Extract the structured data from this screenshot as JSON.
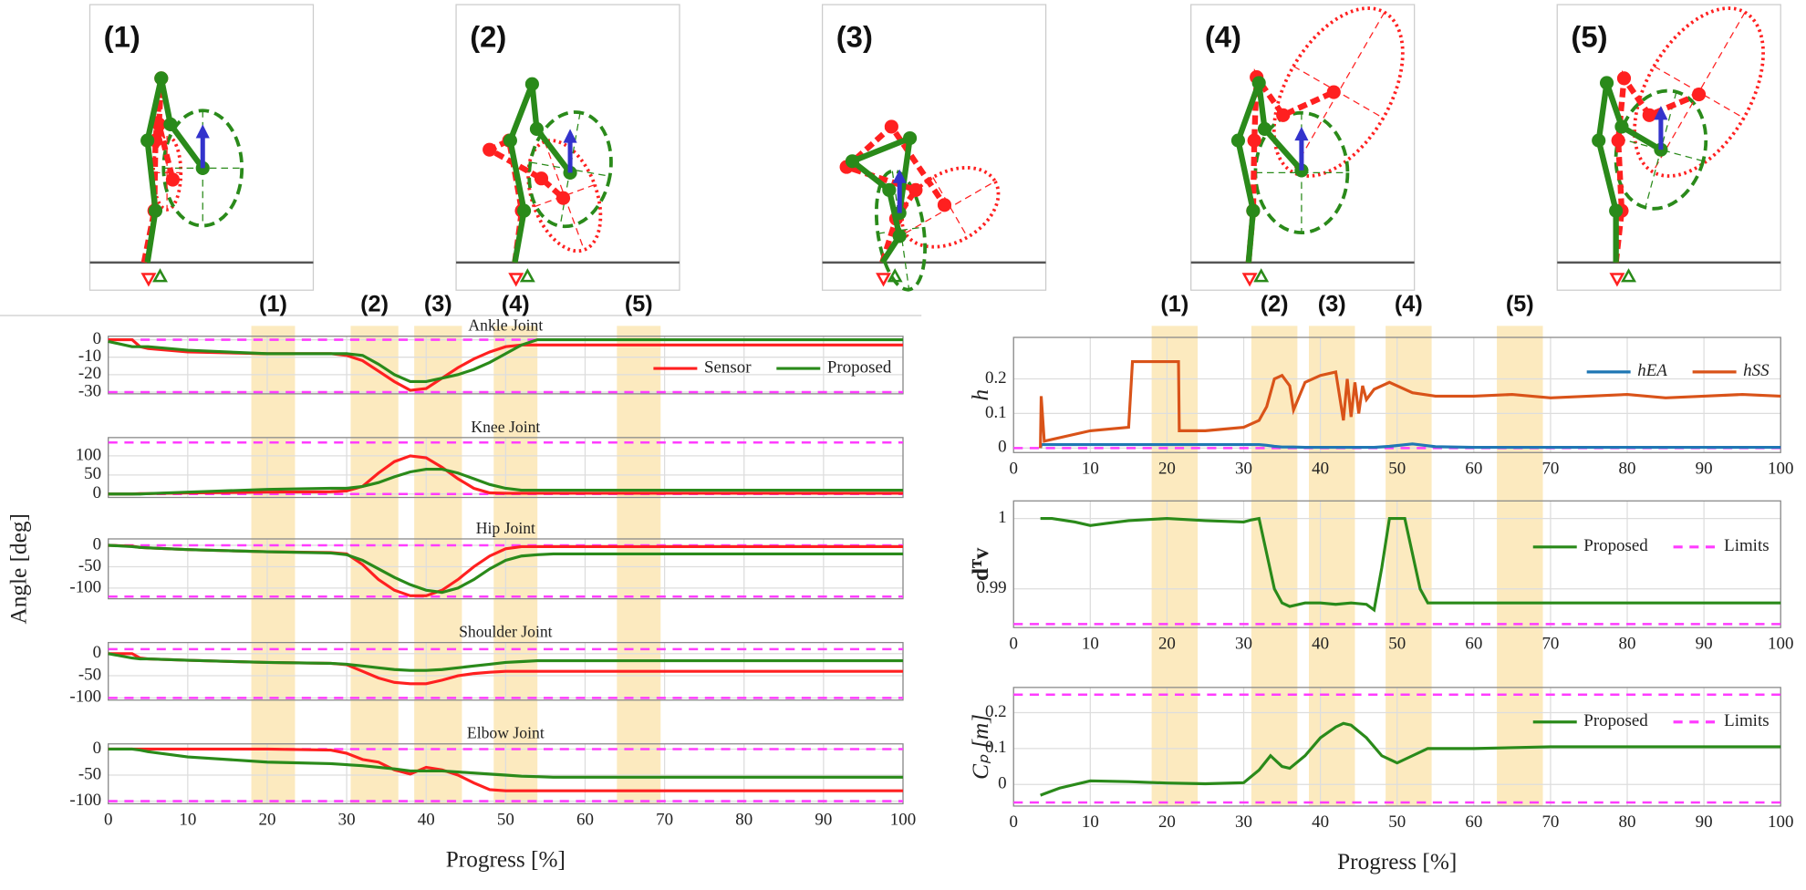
{
  "panels": [
    {
      "label": "(1)"
    },
    {
      "label": "(2)"
    },
    {
      "label": "(3)"
    },
    {
      "label": "(4)"
    },
    {
      "label": "(5)"
    }
  ],
  "chart_data": [
    {
      "type": "line",
      "title": "Ankle Joint",
      "xlim": [
        0,
        100
      ],
      "xticks": [
        0,
        10,
        20,
        30,
        40,
        50,
        60,
        70,
        80,
        90,
        100
      ],
      "xtick_labels": false,
      "ylim": [
        -31,
        2
      ],
      "yticks": [
        0,
        -10,
        -20,
        -30
      ],
      "grid": true,
      "legend": "lower right",
      "shaded": [
        [
          18,
          23.5
        ],
        [
          30.5,
          36.5
        ],
        [
          38.5,
          44.5
        ],
        [
          48.5,
          54
        ],
        [
          64,
          69.5
        ]
      ],
      "shaded_labels": [
        "(1)",
        "(2)",
        "(3)",
        "(4)",
        "(5)"
      ],
      "shaded_color": "#f9d98a",
      "limits": {
        "values": [
          0,
          -30
        ],
        "color": "#ff3cff"
      },
      "x": [
        0,
        3,
        4,
        5,
        10,
        20,
        28,
        30,
        32,
        34,
        36,
        38,
        40,
        42,
        44,
        46,
        48,
        50,
        52,
        54,
        56,
        60,
        70,
        80,
        90,
        100
      ],
      "series": [
        {
          "name": "Sensor",
          "color": "#ff2020",
          "values": [
            0,
            0,
            -4,
            -5,
            -7,
            -8,
            -8,
            -9,
            -12,
            -18,
            -24,
            -29,
            -28,
            -22,
            -16,
            -11,
            -7,
            -4,
            -3,
            -3,
            -3,
            -3,
            -3,
            -3,
            -3,
            -3
          ]
        },
        {
          "name": "Proposed",
          "color": "#2a8a1a",
          "values": [
            -1,
            -4,
            -4,
            -4,
            -6,
            -8,
            -8,
            -8,
            -9,
            -14,
            -20,
            -24,
            -24,
            -22,
            -20,
            -17,
            -13,
            -8,
            -3,
            0,
            0,
            0,
            0,
            0,
            0,
            0
          ]
        }
      ]
    },
    {
      "type": "line",
      "title": "Knee Joint",
      "xlim": [
        0,
        100
      ],
      "xticks": [
        0,
        10,
        20,
        30,
        40,
        50,
        60,
        70,
        80,
        90,
        100
      ],
      "xtick_labels": false,
      "ylim": [
        -9,
        148
      ],
      "yticks": [
        0,
        50,
        100
      ],
      "grid": true,
      "limits": {
        "values": [
          0,
          135
        ],
        "color": "#ff3cff"
      },
      "x": [
        0,
        3,
        4,
        5,
        10,
        20,
        28,
        30,
        32,
        34,
        36,
        38,
        40,
        42,
        44,
        46,
        48,
        50,
        52,
        54,
        56,
        60,
        70,
        80,
        90,
        100
      ],
      "series": [
        {
          "color": "#ff2020",
          "values": [
            0,
            0,
            1,
            1,
            3,
            5,
            6,
            8,
            20,
            55,
            85,
            100,
            95,
            70,
            40,
            15,
            3,
            2,
            2,
            2,
            2,
            2,
            2,
            2,
            2,
            2
          ]
        },
        {
          "color": "#2a8a1a",
          "values": [
            0,
            0,
            0,
            1,
            5,
            12,
            15,
            15,
            20,
            30,
            45,
            58,
            65,
            65,
            55,
            40,
            25,
            15,
            10,
            10,
            10,
            10,
            10,
            10,
            10,
            10
          ]
        }
      ]
    },
    {
      "type": "line",
      "title": "Hip Joint",
      "ylabel": "Angle [deg]",
      "xlim": [
        0,
        100
      ],
      "xticks": [
        0,
        10,
        20,
        30,
        40,
        50,
        60,
        70,
        80,
        90,
        100
      ],
      "xtick_labels": false,
      "ylim": [
        -125,
        15
      ],
      "yticks": [
        0,
        -50,
        -100
      ],
      "grid": true,
      "limits": {
        "values": [
          0,
          -120
        ],
        "color": "#ff3cff"
      },
      "x": [
        0,
        3,
        4,
        5,
        10,
        20,
        28,
        30,
        32,
        34,
        36,
        38,
        40,
        42,
        44,
        46,
        48,
        50,
        52,
        54,
        56,
        60,
        70,
        80,
        90,
        100
      ],
      "series": [
        {
          "color": "#ff2020",
          "values": [
            0,
            -2,
            -5,
            -6,
            -10,
            -15,
            -17,
            -20,
            -45,
            -80,
            -105,
            -118,
            -118,
            -105,
            -80,
            -50,
            -25,
            -8,
            -3,
            -3,
            -3,
            -3,
            -3,
            -3,
            -3,
            -3
          ]
        },
        {
          "color": "#2a8a1a",
          "values": [
            0,
            -3,
            -5,
            -6,
            -10,
            -15,
            -18,
            -22,
            -35,
            -55,
            -75,
            -92,
            -105,
            -110,
            -100,
            -80,
            -55,
            -35,
            -25,
            -22,
            -20,
            -20,
            -20,
            -20,
            -20,
            -20
          ]
        }
      ]
    },
    {
      "type": "line",
      "title": "Shoulder Joint",
      "xlim": [
        0,
        100
      ],
      "xticks": [
        0,
        10,
        20,
        30,
        40,
        50,
        60,
        70,
        80,
        90,
        100
      ],
      "xtick_labels": false,
      "ylim": [
        -105,
        25
      ],
      "yticks": [
        0,
        -50,
        -100
      ],
      "grid": true,
      "limits": {
        "values": [
          10,
          -100
        ],
        "color": "#ff3cff"
      },
      "x": [
        0,
        3,
        4,
        5,
        10,
        20,
        28,
        30,
        32,
        34,
        36,
        38,
        40,
        42,
        44,
        46,
        48,
        50,
        52,
        54,
        56,
        60,
        70,
        80,
        90,
        100
      ],
      "series": [
        {
          "color": "#ff2020",
          "values": [
            0,
            0,
            -10,
            -12,
            -15,
            -20,
            -22,
            -25,
            -40,
            -55,
            -65,
            -68,
            -68,
            -60,
            -50,
            -45,
            -42,
            -40,
            -40,
            -40,
            -40,
            -40,
            -40,
            -40,
            -40,
            -40
          ]
        },
        {
          "color": "#2a8a1a",
          "values": [
            0,
            -10,
            -12,
            -12,
            -15,
            -20,
            -22,
            -24,
            -28,
            -32,
            -36,
            -38,
            -38,
            -36,
            -32,
            -28,
            -24,
            -20,
            -18,
            -16,
            -16,
            -16,
            -16,
            -16,
            -16,
            -16
          ]
        }
      ]
    },
    {
      "type": "line",
      "title": "Elbow Joint",
      "xlabel": "Progress [%]",
      "xlim": [
        0,
        100
      ],
      "xticks": [
        0,
        10,
        20,
        30,
        40,
        50,
        60,
        70,
        80,
        90,
        100
      ],
      "xtick_labels": true,
      "ylim": [
        -105,
        10
      ],
      "yticks": [
        0,
        -50,
        -100
      ],
      "grid": true,
      "limits": {
        "values": [
          0,
          -100
        ],
        "color": "#ff3cff"
      },
      "x": [
        0,
        3,
        4,
        5,
        10,
        20,
        28,
        30,
        32,
        34,
        36,
        38,
        40,
        42,
        44,
        46,
        48,
        50,
        52,
        54,
        56,
        60,
        70,
        80,
        90,
        100
      ],
      "series": [
        {
          "color": "#ff2020",
          "values": [
            0,
            0,
            0,
            0,
            0,
            0,
            -2,
            -8,
            -20,
            -25,
            -40,
            -48,
            -35,
            -40,
            -50,
            -65,
            -78,
            -80,
            -80,
            -80,
            -80,
            -80,
            -80,
            -80,
            -80,
            -80
          ]
        },
        {
          "color": "#2a8a1a",
          "values": [
            0,
            0,
            -2,
            -5,
            -15,
            -25,
            -28,
            -30,
            -32,
            -35,
            -38,
            -42,
            -42,
            -42,
            -44,
            -46,
            -48,
            -50,
            -52,
            -53,
            -54,
            -54,
            -54,
            -54,
            -54,
            -54
          ]
        }
      ]
    },
    {
      "type": "line",
      "ylabel": "h",
      "xlim": [
        0,
        100
      ],
      "xticks": [
        0,
        10,
        20,
        30,
        40,
        50,
        60,
        70,
        80,
        90,
        100
      ],
      "xtick_labels": true,
      "ylim": [
        -0.013,
        0.32
      ],
      "yticks": [
        0,
        0.1,
        0.2
      ],
      "grid": true,
      "legend": "upper right",
      "shaded": [
        [
          18,
          24
        ],
        [
          31,
          37
        ],
        [
          38.5,
          44.5
        ],
        [
          48.5,
          54.5
        ],
        [
          63,
          69
        ]
      ],
      "shaded_labels": [
        "(1)",
        "(2)",
        "(3)",
        "(4)",
        "(5)"
      ],
      "shaded_color": "#f9d98a",
      "limits": {
        "values": [
          0
        ],
        "color": "#ff3cff"
      },
      "x": [
        3.5,
        3.6,
        4,
        10,
        15,
        15.5,
        21.5,
        21.6,
        25,
        30,
        32,
        33,
        34,
        35,
        36,
        36.5,
        38,
        40,
        42,
        43,
        43.5,
        44,
        44.5,
        45,
        45.5,
        46,
        47,
        49,
        52,
        55,
        60,
        65,
        70,
        75,
        80,
        85,
        90,
        95,
        100
      ],
      "series": [
        {
          "name": "hEA",
          "color": "#1f77b4",
          "values": [
            0,
            0.01,
            0.01,
            0.01,
            0.01,
            0.01,
            0.01,
            0.01,
            0.01,
            0.01,
            0.01,
            0.008,
            0.005,
            0.003,
            0.003,
            0.003,
            0.002,
            0.002,
            0.002,
            0.002,
            0.002,
            0.002,
            0.002,
            0.002,
            0.002,
            0.002,
            0.002,
            0.005,
            0.012,
            0.004,
            0.002,
            0.002,
            0.002,
            0.002,
            0.002,
            0.002,
            0.002,
            0.002,
            0.002
          ]
        },
        {
          "name": "hSS",
          "color": "#d95319",
          "values": [
            0,
            0.15,
            0.02,
            0.05,
            0.06,
            0.25,
            0.25,
            0.05,
            0.05,
            0.06,
            0.08,
            0.12,
            0.2,
            0.21,
            0.18,
            0.11,
            0.19,
            0.21,
            0.22,
            0.08,
            0.2,
            0.09,
            0.19,
            0.1,
            0.18,
            0.14,
            0.17,
            0.19,
            0.16,
            0.15,
            0.15,
            0.155,
            0.145,
            0.15,
            0.155,
            0.145,
            0.15,
            0.155,
            0.15
          ]
        }
      ]
    },
    {
      "type": "line",
      "ylabel": "dᵀv",
      "xlim": [
        0,
        100
      ],
      "xticks": [
        0,
        10,
        20,
        30,
        40,
        50,
        60,
        70,
        80,
        90,
        100
      ],
      "xtick_labels": true,
      "ylim": [
        0.9845,
        1.0025
      ],
      "yticks": [
        0.99,
        1
      ],
      "grid": true,
      "legend": "center right",
      "limits": {
        "name": "Limits",
        "values": [
          0.985
        ],
        "color": "#ff3cff"
      },
      "x": [
        3.5,
        5,
        8,
        10,
        12,
        15,
        20,
        25,
        30,
        31,
        32,
        33,
        34,
        35,
        36,
        38,
        40,
        42,
        44,
        46,
        47,
        48,
        49,
        50,
        51,
        52,
        53,
        54,
        56,
        60,
        70,
        80,
        90,
        100
      ],
      "series": [
        {
          "name": "Proposed",
          "color": "#2a8a1a",
          "values": [
            1.0,
            1.0,
            0.9995,
            0.999,
            0.9993,
            0.9997,
            1.0,
            0.9997,
            0.9995,
            0.9998,
            1.0,
            0.995,
            0.99,
            0.988,
            0.9875,
            0.988,
            0.988,
            0.9878,
            0.988,
            0.9878,
            0.987,
            0.993,
            1.0,
            1.0,
            1.0,
            0.995,
            0.99,
            0.988,
            0.988,
            0.988,
            0.988,
            0.988,
            0.988,
            0.988
          ]
        }
      ]
    },
    {
      "type": "line",
      "ylabel": "Cₚ [m]",
      "xlabel": "Progress [%]",
      "xlim": [
        0,
        100
      ],
      "xticks": [
        0,
        10,
        20,
        30,
        40,
        50,
        60,
        70,
        80,
        90,
        100
      ],
      "xtick_labels": true,
      "ylim": [
        -0.06,
        0.27
      ],
      "yticks": [
        0,
        0.1,
        0.2
      ],
      "grid": true,
      "legend": "upper right",
      "limits": {
        "name": "Limits",
        "values": [
          0.25,
          -0.05
        ],
        "color": "#ff3cff"
      },
      "x": [
        3.5,
        6,
        10,
        15,
        20,
        25,
        30,
        32,
        33.5,
        35,
        36,
        38,
        40,
        42,
        43,
        44,
        46,
        48,
        50,
        52,
        54,
        56,
        60,
        70,
        80,
        90,
        100
      ],
      "series": [
        {
          "name": "Proposed",
          "color": "#2a8a1a",
          "values": [
            -0.03,
            -0.01,
            0.01,
            0.008,
            0.004,
            0.002,
            0.005,
            0.04,
            0.08,
            0.05,
            0.045,
            0.08,
            0.13,
            0.16,
            0.17,
            0.165,
            0.13,
            0.08,
            0.06,
            0.08,
            0.1,
            0.1,
            0.1,
            0.105,
            0.105,
            0.105,
            0.105
          ]
        }
      ]
    }
  ]
}
